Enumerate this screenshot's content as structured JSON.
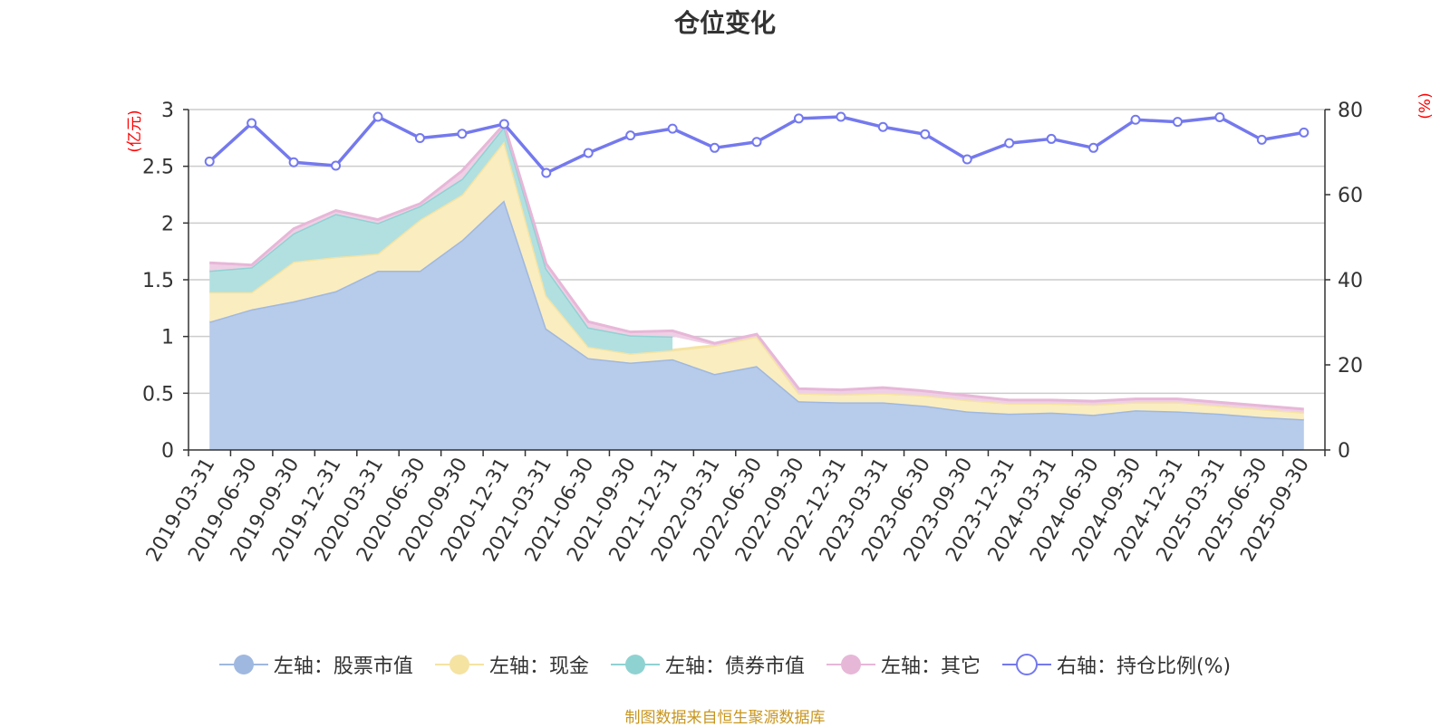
{
  "chart_data": {
    "type": "area",
    "title": "仓位变化",
    "categories": [
      "2019-03-31",
      "2019-06-30",
      "2019-09-30",
      "2019-12-31",
      "2020-03-31",
      "2020-06-30",
      "2020-09-30",
      "2020-12-31",
      "2021-03-31",
      "2021-06-30",
      "2021-09-30",
      "2021-12-31",
      "2022-03-31",
      "2022-06-30",
      "2022-09-30",
      "2022-12-31",
      "2023-03-31",
      "2023-06-30",
      "2023-09-30",
      "2023-12-31",
      "2024-03-31",
      "2024-06-30",
      "2024-09-30",
      "2024-12-31",
      "2025-03-31",
      "2025-06-30",
      "2025-09-30"
    ],
    "y_left": {
      "label": "(亿元)",
      "min": 0,
      "max": 3,
      "ticks": [
        "0",
        "0.5",
        "1",
        "1.5",
        "2",
        "2.5",
        "3"
      ]
    },
    "y_right": {
      "label": "(%)",
      "min": 0,
      "max": 80,
      "ticks": [
        "0",
        "20",
        "40",
        "60",
        "80"
      ]
    },
    "grid": true,
    "stacked": true,
    "series": [
      {
        "name": "左轴：股票市值",
        "axis": "left",
        "kind": "area",
        "color": "#9fb8e0",
        "fill": "#b7cbea",
        "values": [
          1.13,
          1.24,
          1.31,
          1.4,
          1.58,
          1.58,
          1.85,
          2.2,
          1.07,
          0.81,
          0.77,
          0.8,
          0.67,
          0.74,
          0.43,
          0.42,
          0.42,
          0.39,
          0.34,
          0.32,
          0.33,
          0.31,
          0.35,
          0.34,
          0.32,
          0.29,
          0.27
        ]
      },
      {
        "name": "左轴：现金",
        "axis": "left",
        "kind": "area",
        "color": "#f5e3a2",
        "fill": "#faedc0",
        "values": [
          0.26,
          0.15,
          0.35,
          0.3,
          0.15,
          0.45,
          0.4,
          0.52,
          0.29,
          0.1,
          0.08,
          0.08,
          0.25,
          0.26,
          0.07,
          0.07,
          0.08,
          0.09,
          0.1,
          0.09,
          0.08,
          0.09,
          0.07,
          0.08,
          0.07,
          0.07,
          0.06
        ]
      },
      {
        "name": "左轴：债券市值",
        "axis": "left",
        "kind": "area",
        "color": "#8fd2d2",
        "fill": "#b2e0e0",
        "values": [
          0.19,
          0.22,
          0.25,
          0.38,
          0.27,
          0.12,
          0.14,
          0.13,
          0.24,
          0.17,
          0.16,
          0.12,
          null,
          null,
          null,
          null,
          null,
          null,
          null,
          null,
          null,
          null,
          null,
          null,
          null,
          null,
          null
        ]
      },
      {
        "name": "左轴：其它",
        "axis": "left",
        "kind": "area",
        "color": "#e7b7d8",
        "fill": "#efcfe5",
        "values": [
          0.07,
          0.02,
          0.04,
          0.03,
          0.03,
          0.02,
          0.07,
          0.02,
          0.04,
          0.05,
          0.03,
          0.05,
          0.02,
          0.02,
          0.04,
          0.04,
          0.05,
          0.04,
          0.04,
          0.03,
          0.03,
          0.03,
          0.03,
          0.03,
          0.03,
          0.03,
          0.03
        ]
      },
      {
        "name": "右轴：持仓比例(%)",
        "axis": "right",
        "kind": "line",
        "color": "#7479ee",
        "values": [
          67.8,
          76.8,
          67.6,
          66.8,
          78.3,
          73.3,
          74.3,
          76.6,
          65.1,
          69.8,
          73.9,
          75.5,
          71.0,
          72.4,
          77.9,
          78.3,
          75.9,
          74.2,
          68.3,
          72.1,
          73.1,
          71.0,
          77.6,
          77.1,
          78.2,
          72.9,
          74.6
        ]
      }
    ],
    "legend_position": "bottom"
  },
  "source_note": "制图数据来自恒生聚源数据库"
}
